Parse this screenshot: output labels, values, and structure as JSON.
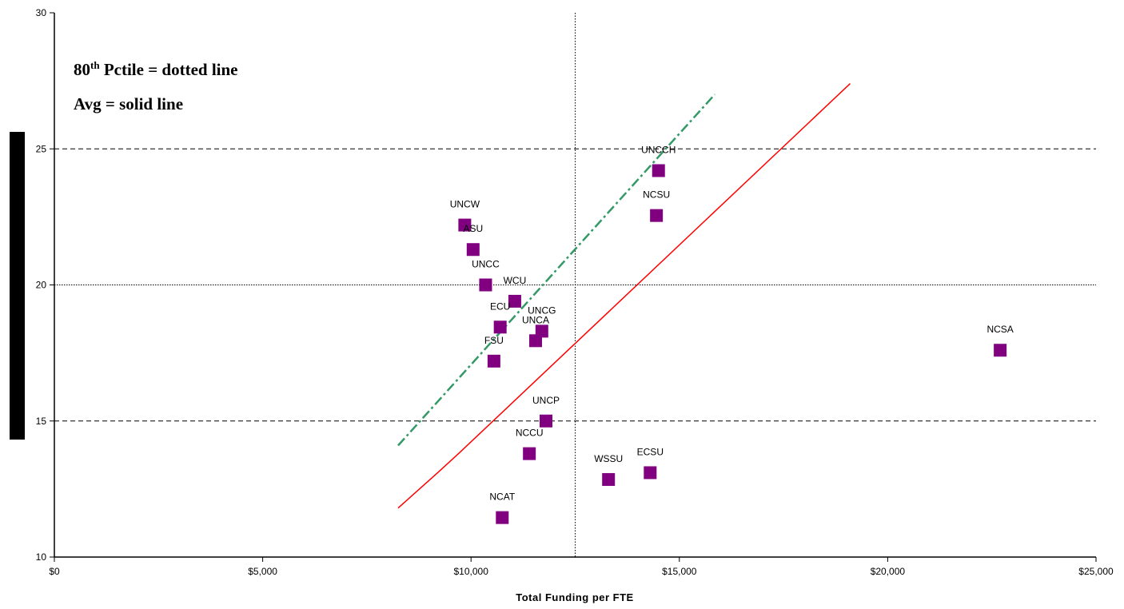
{
  "chart_data": {
    "type": "scatter",
    "xlabel": "Total Funding per FTE",
    "ylabel": "",
    "xlim": [
      0,
      25000
    ],
    "ylim": [
      10,
      30
    ],
    "x_ticks": [
      "$0",
      "$5,000",
      "$10,000",
      "$15,000",
      "$20,000",
      "$25,000"
    ],
    "y_ticks": [
      "10",
      "15",
      "20",
      "25",
      "30"
    ],
    "annotations": {
      "line1_prefix": "80",
      "line1_sup": "th",
      "line1_suffix": " Pctile = dotted line",
      "line2": "Avg = solid line"
    },
    "points": [
      {
        "label": "UNCW",
        "x": 9850,
        "y": 22.2
      },
      {
        "label": "ASU",
        "x": 10050,
        "y": 21.3
      },
      {
        "label": "UNCC",
        "x": 10350,
        "y": 20.0
      },
      {
        "label": "WCU",
        "x": 11050,
        "y": 19.4
      },
      {
        "label": "ECU",
        "x": 10700,
        "y": 18.45
      },
      {
        "label": "UNCG",
        "x": 11700,
        "y": 18.3
      },
      {
        "label": "UNCA",
        "x": 11550,
        "y": 17.95
      },
      {
        "label": "FSU",
        "x": 10550,
        "y": 17.2
      },
      {
        "label": "UNCP",
        "x": 11800,
        "y": 15.0
      },
      {
        "label": "NCCU",
        "x": 11400,
        "y": 13.8
      },
      {
        "label": "NCAT",
        "x": 10750,
        "y": 11.45
      },
      {
        "label": "WSSU",
        "x": 13300,
        "y": 12.85
      },
      {
        "label": "ECSU",
        "x": 14300,
        "y": 13.1
      },
      {
        "label": "UNCCH",
        "x": 14500,
        "y": 24.2
      },
      {
        "label": "NCSU",
        "x": 14450,
        "y": 22.55
      },
      {
        "label": "NCSA",
        "x": 22700,
        "y": 17.6
      }
    ],
    "reference_lines": {
      "x_80th_percentile": 12500,
      "y_80th_percentile": 20.0,
      "avg_trend": [
        [
          8250,
          11.8
        ],
        [
          9200,
          13.1
        ],
        [
          9700,
          13.8
        ],
        [
          19100,
          27.4
        ]
      ],
      "pctile_trend": [
        [
          8250,
          14.1
        ],
        [
          15850,
          27.0
        ]
      ]
    },
    "gridlines_y": [
      15,
      25
    ],
    "colors": {
      "marker": "#800080",
      "avg_line": "#ff0000",
      "pctile_line": "#339966",
      "axis": "#000000",
      "grid": "#000000"
    }
  }
}
